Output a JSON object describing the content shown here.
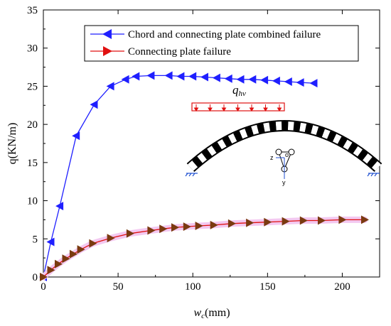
{
  "chart_data": {
    "type": "line",
    "xlabel_main": "w",
    "xlabel_sub": "c",
    "xlabel_unit": "(mm)",
    "ylabel": "q(KN/m)",
    "xlim": [
      0,
      225
    ],
    "ylim": [
      0,
      35
    ],
    "xticks": [
      0,
      50,
      100,
      150,
      200
    ],
    "yticks": [
      0,
      5,
      10,
      15,
      20,
      25,
      30,
      35
    ],
    "grid": false,
    "legend_position": "top",
    "annotation": {
      "main": "q",
      "sub": "hv"
    },
    "series": [
      {
        "name": "Chord and connecting plate combined failure",
        "color": "#1f1fff",
        "marker": "triangle-left",
        "x": [
          0,
          5,
          11,
          22,
          34,
          45,
          55,
          62,
          72,
          84,
          92,
          100,
          108,
          116,
          124,
          132,
          140,
          148,
          156,
          164,
          172,
          181
        ],
        "y": [
          0,
          4.6,
          9.3,
          18.5,
          22.6,
          25.0,
          25.9,
          26.3,
          26.4,
          26.4,
          26.3,
          26.3,
          26.2,
          26.1,
          26.0,
          25.9,
          25.9,
          25.8,
          25.7,
          25.6,
          25.5,
          25.4
        ]
      },
      {
        "name": "Connecting plate failure",
        "color": "#e01010",
        "marker_color": "#7a3a10",
        "band_color": "#f3c8f0",
        "marker": "triangle-right",
        "x": [
          0,
          5,
          10,
          15,
          20,
          25,
          33,
          45,
          58,
          72,
          80,
          88,
          96,
          104,
          114,
          126,
          138,
          150,
          162,
          174,
          186,
          200,
          215
        ],
        "y": [
          0,
          0.9,
          1.7,
          2.4,
          3.0,
          3.6,
          4.4,
          5.1,
          5.7,
          6.1,
          6.3,
          6.5,
          6.6,
          6.7,
          6.8,
          7.0,
          7.1,
          7.2,
          7.3,
          7.4,
          7.4,
          7.5,
          7.5
        ]
      }
    ]
  },
  "inset": {
    "axis_z": "z",
    "axis_y": "y",
    "axis_o": "o"
  }
}
